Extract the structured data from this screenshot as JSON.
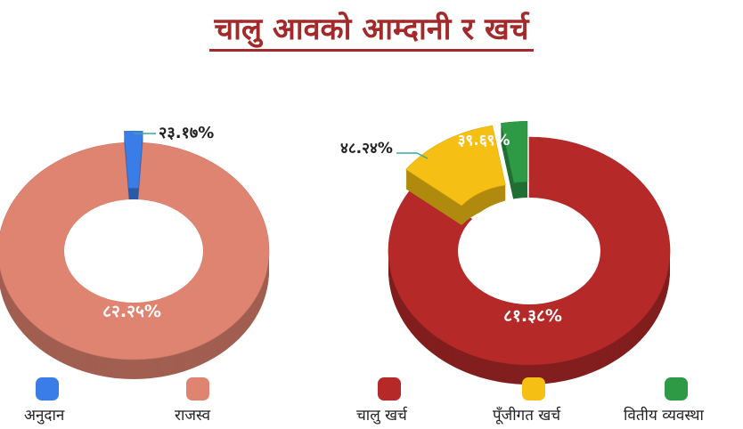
{
  "title": "चालु आवको आम्दानी र खर्च",
  "chart_data": [
    {
      "type": "pie",
      "variant": "donut-3d",
      "categories": [
        "अनुदान",
        "राजस्व"
      ],
      "values": [
        2.2,
        97.8
      ],
      "labels": [
        "२३.१७%",
        "८२.२५%"
      ],
      "colors": [
        "#3b7de8",
        "#df8470"
      ]
    },
    {
      "type": "pie",
      "variant": "donut-3d",
      "categories": [
        "चालु खर्च",
        "पूँजीगत खर्च",
        "वितीय व्यवस्था"
      ],
      "values": [
        85.2,
        11.8,
        3.0
      ],
      "labels": [
        "८१.३८%",
        "३९.६९%",
        "४८.२४%"
      ],
      "colors": [
        "#b52a29",
        "#f5bf14",
        "#2e9a45"
      ]
    }
  ],
  "legend": [
    {
      "label": "अनुदान",
      "color": "#3b7de8"
    },
    {
      "label": "राजस्व",
      "color": "#df8470"
    },
    {
      "label": "चालु खर्च",
      "color": "#b52a29"
    },
    {
      "label": "पूँजीगत खर्च",
      "color": "#f5bf14"
    },
    {
      "label": "वितीय व्यवस्था",
      "color": "#2e9a45"
    }
  ]
}
